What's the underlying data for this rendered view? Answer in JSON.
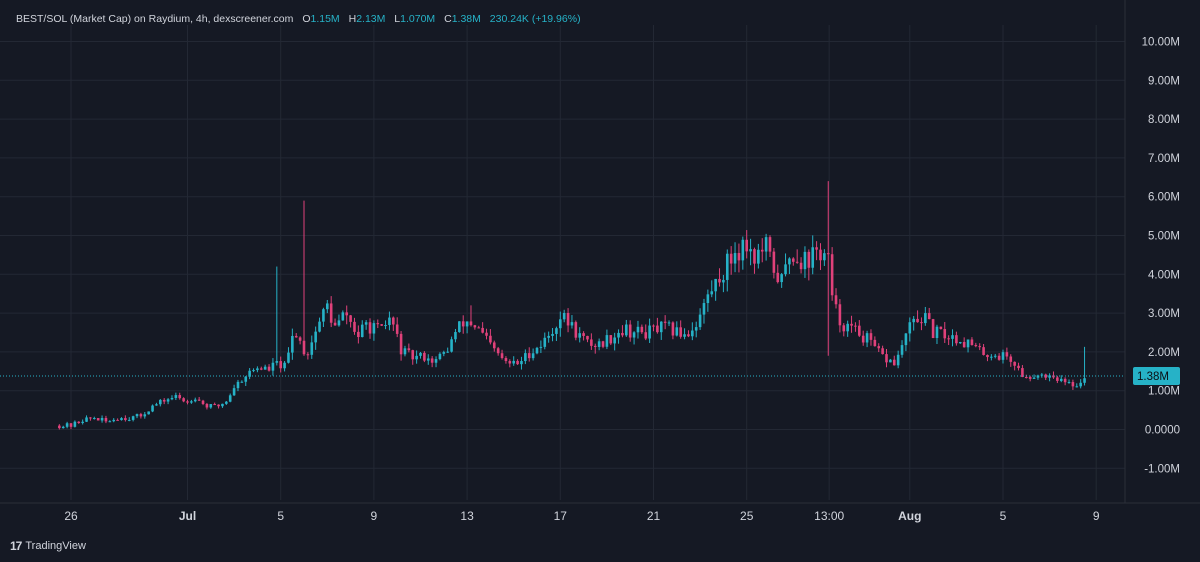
{
  "header": {
    "symbol": "BEST/SOL (Market Cap) on Raydium, 4h, dexscreener.com",
    "open_label": "O",
    "open": "1.15M",
    "high_label": "H",
    "high": "2.13M",
    "low_label": "L",
    "low": "1.070M",
    "close_label": "C",
    "close": "1.38M",
    "change": "230.24K (+19.96%)"
  },
  "branding": {
    "logo": "17",
    "name": "TradingView"
  },
  "colors": {
    "background": "#151924",
    "grid": "#232834",
    "up": "#26b2c7",
    "down": "#e0417a",
    "last_price": "#26b2c7",
    "text": "#d1d4dc"
  },
  "chart_data": {
    "type": "candlestick",
    "title": "BEST/SOL (Market Cap) on Raydium, 4h, dexscreener.com",
    "y_axis_labels": [
      "10.00M",
      "9.00M",
      "8.00M",
      "7.00M",
      "6.00M",
      "5.00M",
      "4.00M",
      "3.00M",
      "2.00M",
      "1.00M",
      "0.0000",
      "-1.00M"
    ],
    "y_axis_values": [
      10,
      9,
      8,
      7,
      6,
      5,
      4,
      3,
      2,
      1,
      0,
      -1
    ],
    "ylim": [
      -1.7,
      10.5
    ],
    "y_unit": "M",
    "x_axis_labels": [
      {
        "label": "26",
        "day": 0,
        "bold": false
      },
      {
        "label": "Jul",
        "day": 5,
        "bold": true
      },
      {
        "label": "5",
        "day": 9,
        "bold": false
      },
      {
        "label": "9",
        "day": 13,
        "bold": false
      },
      {
        "label": "13",
        "day": 17,
        "bold": false
      },
      {
        "label": "17",
        "day": 21,
        "bold": false
      },
      {
        "label": "21",
        "day": 25,
        "bold": false
      },
      {
        "label": "25",
        "day": 29,
        "bold": false
      },
      {
        "label": "13:00",
        "day": 32.54,
        "bold": false
      },
      {
        "label": "Aug",
        "day": 36,
        "bold": true
      },
      {
        "label": "5",
        "day": 40,
        "bold": false
      },
      {
        "label": "9",
        "day": 44,
        "bold": false
      }
    ],
    "x_days_range": [
      -1.2,
      46.5
    ],
    "last_price": 1.38,
    "last_price_label": "1.38M",
    "grid": true,
    "candle_interval": "4h",
    "series_outline": [
      [
        -0.5,
        0.1
      ],
      [
        0,
        0.1
      ],
      [
        0.5,
        0.25
      ],
      [
        1,
        0.3
      ],
      [
        1.5,
        0.2
      ],
      [
        2,
        0.3
      ],
      [
        2.5,
        0.3
      ],
      [
        3,
        0.35
      ],
      [
        3.5,
        0.6
      ],
      [
        4,
        0.75
      ],
      [
        4.5,
        0.85
      ],
      [
        5,
        0.7
      ],
      [
        5.3,
        0.85
      ],
      [
        5.8,
        0.6
      ],
      [
        6.3,
        0.6
      ],
      [
        6.7,
        0.75
      ],
      [
        7,
        1.1
      ],
      [
        7.5,
        1.4
      ],
      [
        8,
        1.6
      ],
      [
        8.5,
        1.55
      ],
      [
        8.8,
        1.7
      ],
      [
        9.2,
        1.6
      ],
      [
        9.6,
        2.6
      ],
      [
        10.1,
        1.9
      ],
      [
        10.6,
        2.7
      ],
      [
        11,
        3.2
      ],
      [
        11.3,
        2.6
      ],
      [
        11.8,
        3.0
      ],
      [
        12.3,
        2.4
      ],
      [
        12.7,
        2.7
      ],
      [
        13.3,
        2.5
      ],
      [
        13.7,
        2.9
      ],
      [
        14.2,
        2.0
      ],
      [
        14.7,
        1.85
      ],
      [
        15.2,
        1.9
      ],
      [
        15.6,
        1.75
      ],
      [
        16.1,
        2.0
      ],
      [
        16.5,
        2.5
      ],
      [
        16.9,
        2.8
      ],
      [
        17.3,
        2.7
      ],
      [
        17.7,
        2.4
      ],
      [
        18.2,
        2.0
      ],
      [
        18.7,
        1.7
      ],
      [
        19.2,
        1.7
      ],
      [
        19.7,
        2.0
      ],
      [
        20.2,
        2.2
      ],
      [
        20.6,
        2.5
      ],
      [
        21.0,
        2.9
      ],
      [
        21.3,
        2.8
      ],
      [
        21.7,
        2.5
      ],
      [
        22.2,
        2.2
      ],
      [
        22.7,
        2.2
      ],
      [
        23.2,
        2.4
      ],
      [
        23.7,
        2.6
      ],
      [
        24.2,
        2.5
      ],
      [
        24.7,
        2.5
      ],
      [
        25.2,
        2.6
      ],
      [
        25.6,
        2.6
      ],
      [
        26.0,
        2.5
      ],
      [
        26.5,
        2.5
      ],
      [
        26.9,
        2.8
      ],
      [
        27.3,
        3.4
      ],
      [
        27.7,
        3.8
      ],
      [
        28.1,
        4.2
      ],
      [
        28.5,
        4.6
      ],
      [
        29.0,
        4.8
      ],
      [
        29.4,
        4.4
      ],
      [
        29.8,
        4.7
      ],
      [
        30.1,
        4.2
      ],
      [
        30.5,
        3.8
      ],
      [
        30.9,
        4.6
      ],
      [
        31.3,
        4.4
      ],
      [
        31.7,
        4.4
      ],
      [
        32.1,
        4.6
      ],
      [
        32.5,
        4.4
      ],
      [
        32.6,
        3.4
      ],
      [
        33.0,
        2.8
      ],
      [
        33.4,
        2.6
      ],
      [
        33.8,
        2.5
      ],
      [
        34.2,
        2.3
      ],
      [
        34.6,
        2.0
      ],
      [
        35.0,
        1.8
      ],
      [
        35.4,
        1.7
      ],
      [
        35.8,
        2.4
      ],
      [
        36.2,
        2.8
      ],
      [
        36.6,
        2.9
      ],
      [
        37.0,
        2.5
      ],
      [
        37.4,
        2.45
      ],
      [
        37.8,
        2.4
      ],
      [
        38.2,
        2.3
      ],
      [
        38.6,
        2.2
      ],
      [
        39.0,
        2.0
      ],
      [
        39.4,
        1.95
      ],
      [
        39.8,
        1.9
      ],
      [
        40.2,
        1.9
      ],
      [
        40.6,
        1.6
      ],
      [
        41.0,
        1.3
      ],
      [
        41.4,
        1.45
      ],
      [
        41.8,
        1.4
      ],
      [
        42.2,
        1.4
      ],
      [
        42.6,
        1.2
      ],
      [
        43.0,
        1.15
      ],
      [
        43.3,
        1.2
      ],
      [
        43.5,
        1.38
      ]
    ],
    "spikes": [
      {
        "day": 8.9,
        "high": 4.2
      },
      {
        "day": 10.0,
        "high": 5.9
      },
      {
        "day": 11.0,
        "high": 3.1
      },
      {
        "day": 17.2,
        "high": 3.2
      },
      {
        "day": 32.55,
        "high": 6.4,
        "low": 1.9
      },
      {
        "day": 43.5,
        "high": 2.13
      }
    ]
  }
}
